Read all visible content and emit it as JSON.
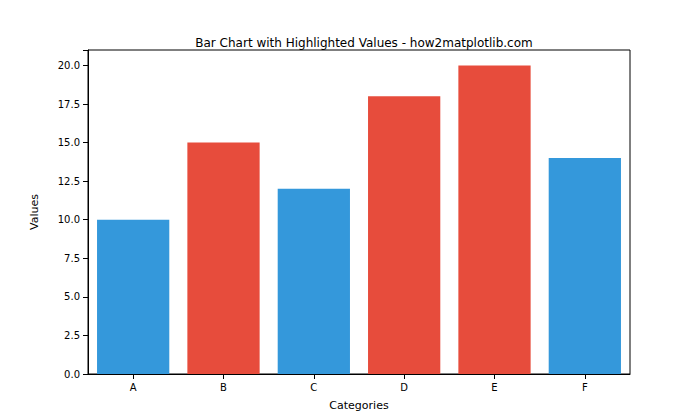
{
  "chart_data": {
    "type": "bar",
    "title": "Bar Chart with Highlighted Values - how2matplotlib.com",
    "x_label": "Categories",
    "y_label": "Values",
    "categories": [
      "A",
      "B",
      "C",
      "D",
      "E",
      "F"
    ],
    "values": [
      10,
      15,
      12,
      18,
      20,
      14
    ],
    "colors": [
      "#3498db",
      "#e74c3c",
      "#3498db",
      "#e74c3c",
      "#e74c3c",
      "#3498db"
    ],
    "ylim": [
      0,
      21
    ],
    "yticks": [
      {
        "value": 0,
        "label": "0.0"
      },
      {
        "value": 2.5,
        "label": "2.5"
      },
      {
        "value": 5,
        "label": "5.0"
      },
      {
        "value": 7.5,
        "label": "7.5"
      },
      {
        "value": 10,
        "label": "10.0"
      },
      {
        "value": 12.5,
        "label": "12.5"
      },
      {
        "value": 15,
        "label": "15.0"
      },
      {
        "value": 17.5,
        "label": "17.5"
      },
      {
        "value": 20,
        "label": "20.0"
      }
    ],
    "grid": false
  }
}
